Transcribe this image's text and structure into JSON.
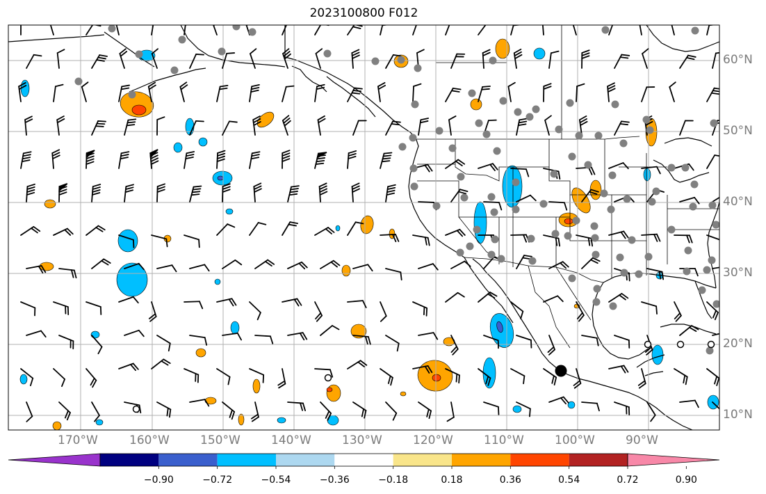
{
  "title": "2023100800 F012",
  "lon_labels": [
    "170°W",
    "160°W",
    "150°W",
    "140°W",
    "130°W",
    "120°W",
    "110°W",
    "100°W",
    "90°W"
  ],
  "lat_labels": [
    "60°N",
    "50°N",
    "40°N",
    "30°N",
    "20°N",
    "10°N"
  ],
  "colorbar": {
    "colors": [
      "#9933cc",
      "#000080",
      "#3a5fcd",
      "#00bfff",
      "#add8f0",
      "#ffffff",
      "#f9e58a",
      "#ffa500",
      "#ff4500",
      "#b22222",
      "#f888a8"
    ],
    "labels": [
      "−0.90",
      "−0.72",
      "−0.54",
      "−0.36",
      "−0.18",
      "0.18",
      "0.36",
      "0.54",
      "0.72",
      "0.90"
    ]
  },
  "colors": {
    "land_fill": "#ffffff",
    "coast": "#000000",
    "grid": "#b0b0b0",
    "station": "#808080",
    "label": "#7a7a7a",
    "pos_low": "#f9e58a",
    "pos_mid": "#ffa500",
    "pos_high": "#ff4500",
    "neg_low": "#add8f0",
    "neg_mid": "#00bfff",
    "neg_high": "#3a5fcd"
  }
}
